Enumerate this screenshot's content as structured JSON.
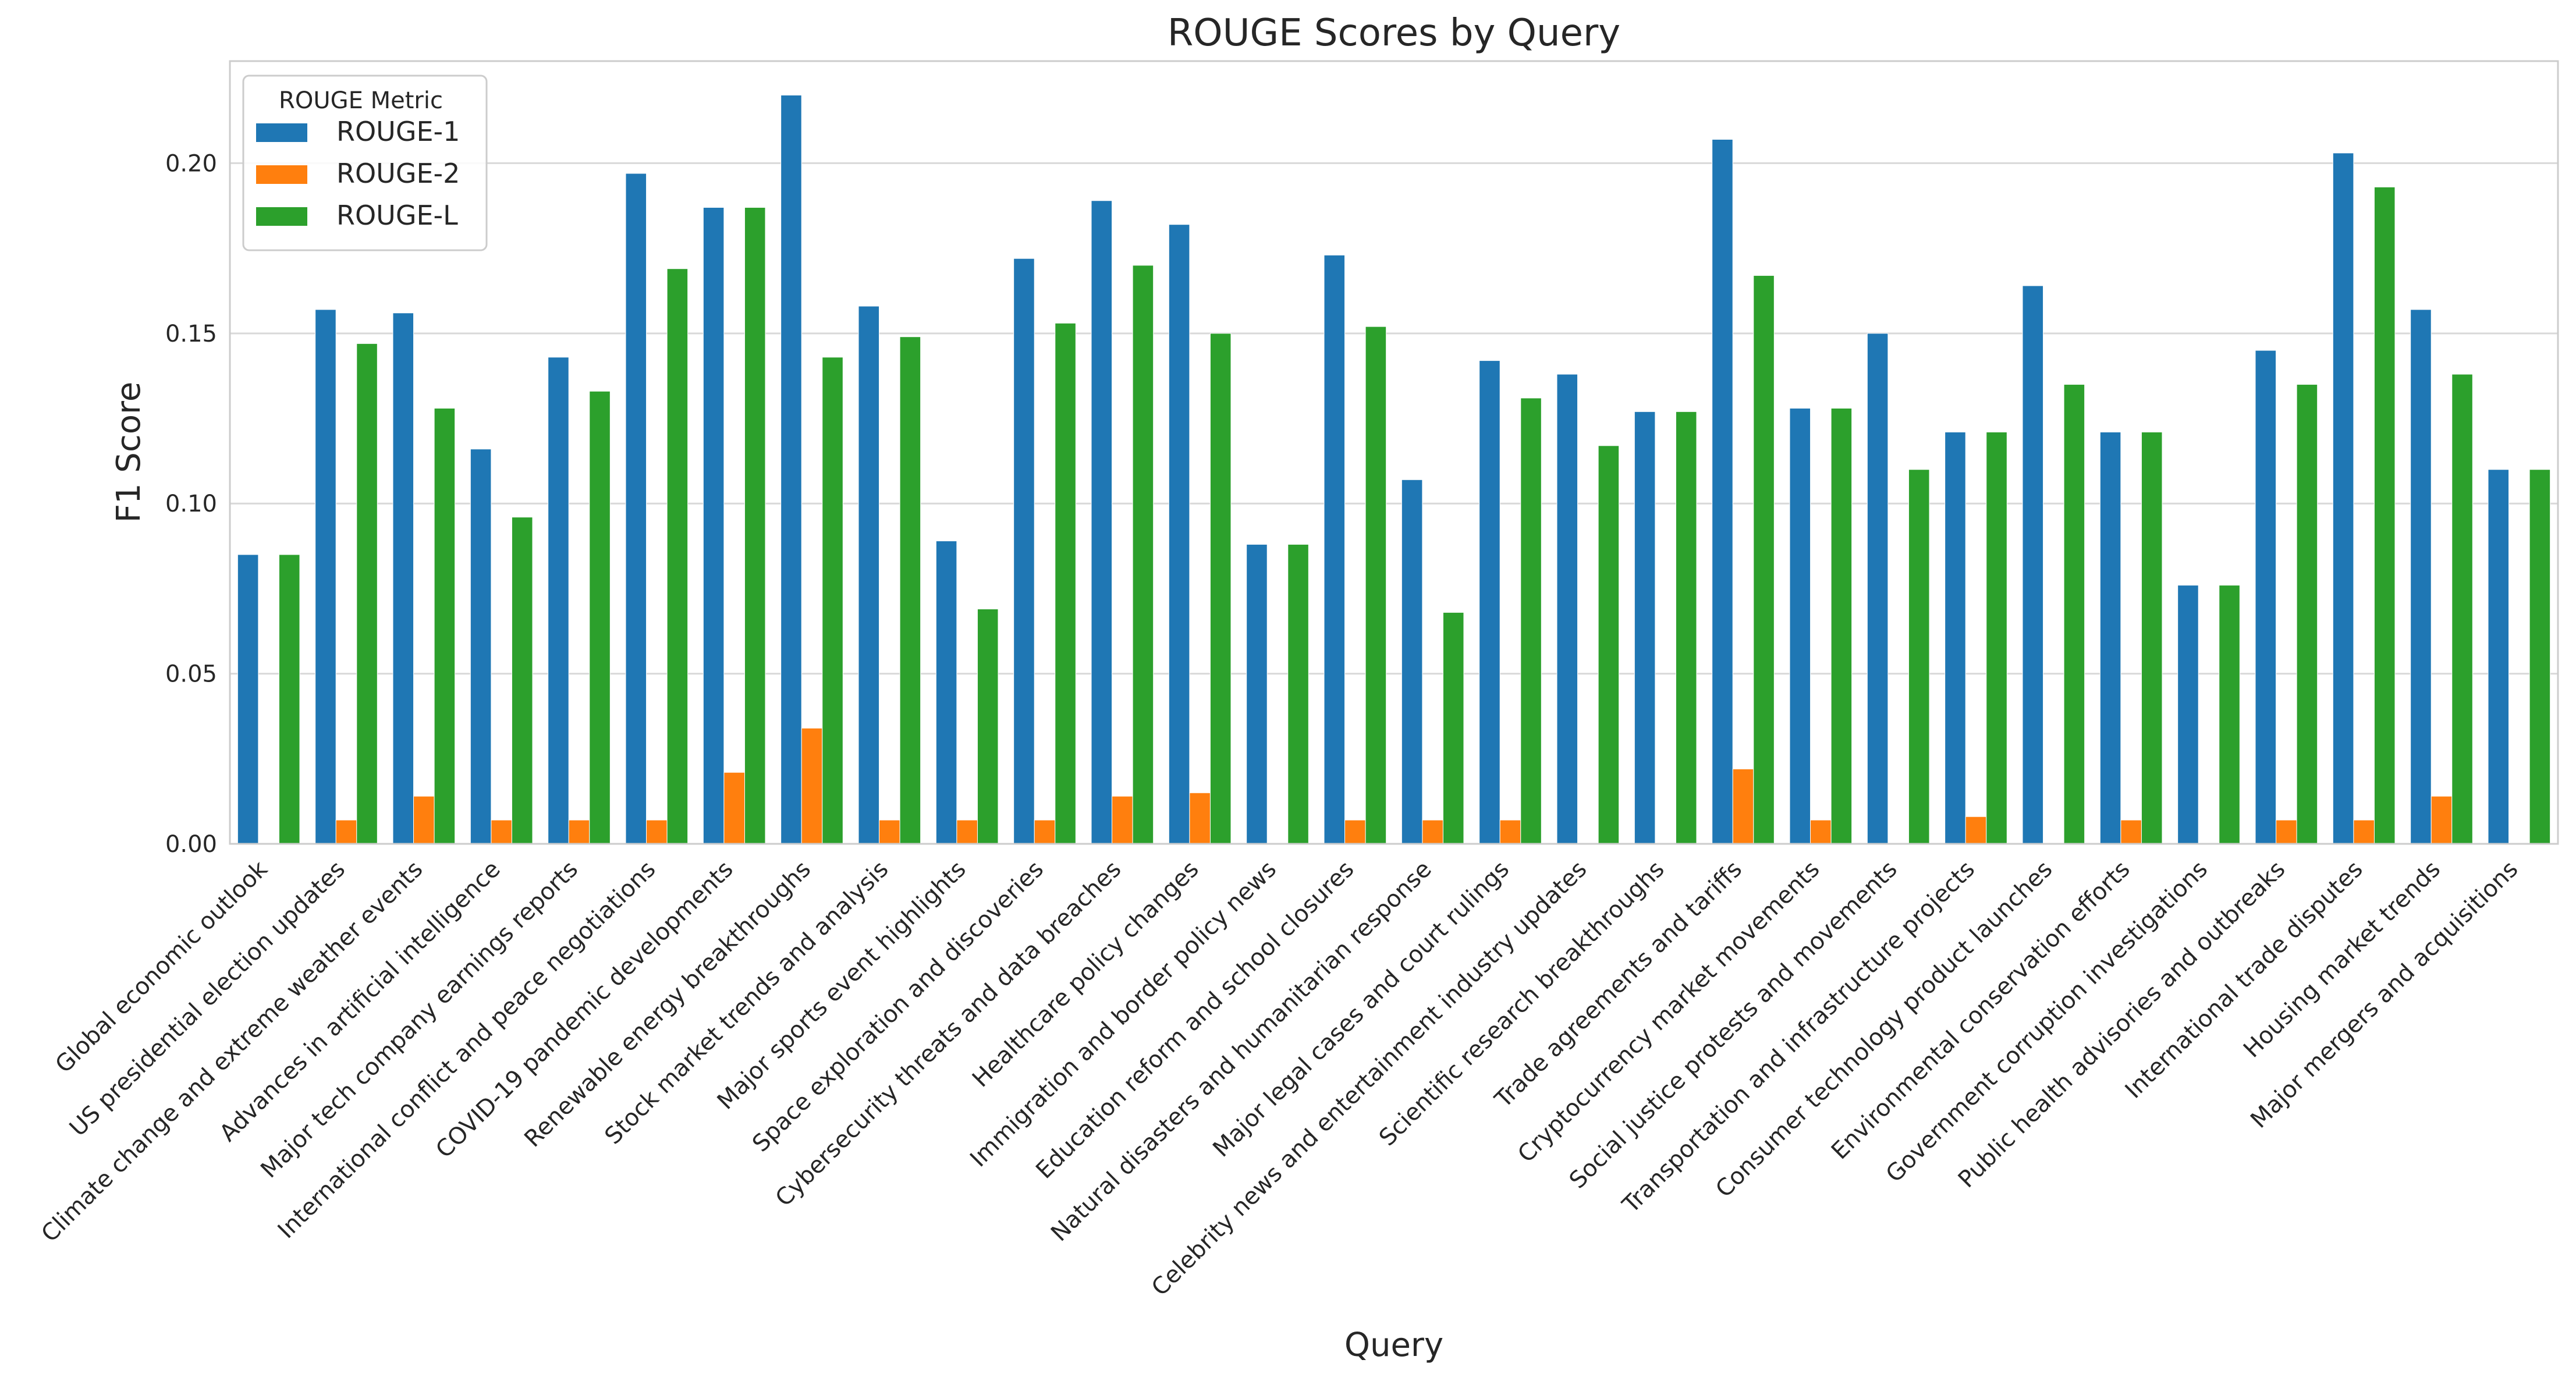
{
  "chart_data": {
    "type": "bar",
    "title": "ROUGE Scores by Query",
    "xlabel": "Query",
    "ylabel": "F1 Score",
    "ylim": [
      0,
      0.23
    ],
    "yticks": [
      0.0,
      0.05,
      0.1,
      0.15,
      0.2
    ],
    "ytick_labels": [
      "0.00",
      "0.05",
      "0.10",
      "0.15",
      "0.20"
    ],
    "grid": "horizontal",
    "legend": {
      "title": "ROUGE Metric",
      "placement": "top-left"
    },
    "categories": [
      "Global economic outlook",
      "US presidential election updates",
      "Climate change and extreme weather events",
      "Advances in artificial intelligence",
      "Major tech company earnings reports",
      "International conflict and peace negotiations",
      "COVID-19 pandemic developments",
      "Renewable energy breakthroughs",
      "Stock market trends and analysis",
      "Major sports event highlights",
      "Space exploration and discoveries",
      "Cybersecurity threats and data breaches",
      "Healthcare policy changes",
      "Immigration and border policy news",
      "Education reform and school closures",
      "Natural disasters and humanitarian response",
      "Major legal cases and court rulings",
      "Celebrity news and entertainment industry updates",
      "Scientific research breakthroughs",
      "Trade agreements and tariffs",
      "Cryptocurrency market movements",
      "Social justice protests and movements",
      "Transportation and infrastructure projects",
      "Consumer technology product launches",
      "Environmental conservation efforts",
      "Government corruption investigations",
      "Public health advisories and outbreaks",
      "International trade disputes",
      "Housing market trends",
      "Major mergers and acquisitions"
    ],
    "series": [
      {
        "name": "ROUGE-1",
        "color": "#1f77b4",
        "values": [
          0.085,
          0.157,
          0.156,
          0.116,
          0.143,
          0.197,
          0.187,
          0.22,
          0.158,
          0.089,
          0.172,
          0.189,
          0.182,
          0.088,
          0.173,
          0.107,
          0.142,
          0.138,
          0.127,
          0.207,
          0.128,
          0.15,
          0.121,
          0.164,
          0.121,
          0.076,
          0.145,
          0.203,
          0.157,
          0.11
        ]
      },
      {
        "name": "ROUGE-2",
        "color": "#ff7f0e",
        "values": [
          0.0,
          0.007,
          0.014,
          0.007,
          0.007,
          0.007,
          0.021,
          0.034,
          0.007,
          0.007,
          0.007,
          0.014,
          0.015,
          0.0,
          0.007,
          0.007,
          0.007,
          0.0,
          0.0,
          0.022,
          0.007,
          0.0,
          0.008,
          0.0,
          0.007,
          0.0,
          0.007,
          0.007,
          0.014,
          0.0
        ]
      },
      {
        "name": "ROUGE-L",
        "color": "#2ca02c",
        "values": [
          0.085,
          0.147,
          0.128,
          0.096,
          0.133,
          0.169,
          0.187,
          0.143,
          0.149,
          0.069,
          0.153,
          0.17,
          0.15,
          0.088,
          0.152,
          0.068,
          0.131,
          0.117,
          0.127,
          0.167,
          0.128,
          0.11,
          0.121,
          0.135,
          0.121,
          0.076,
          0.135,
          0.193,
          0.138,
          0.11
        ]
      }
    ]
  }
}
